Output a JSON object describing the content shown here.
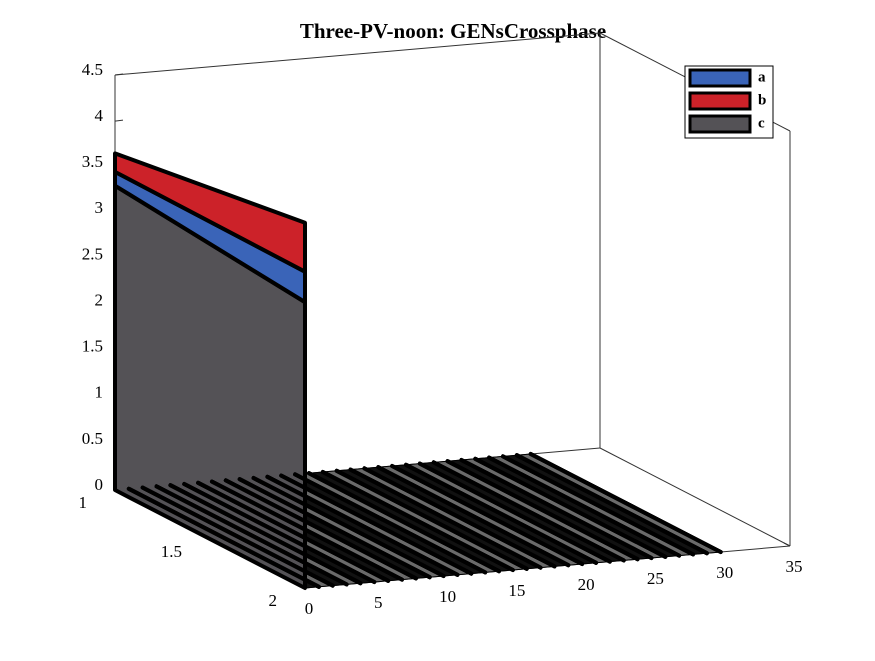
{
  "chart_data": {
    "type": "bar3-stacked",
    "title": "Three-PV-noon: GENsCrossphase",
    "x": [
      0,
      1,
      2,
      3,
      4,
      5,
      6,
      7,
      8,
      9,
      10,
      11,
      12,
      13,
      14,
      15,
      16,
      17,
      18,
      19,
      20,
      21,
      22,
      23,
      24,
      25,
      26,
      27,
      28,
      29,
      30
    ],
    "depth": [
      1,
      2
    ],
    "series": [
      {
        "name": "a",
        "color": "#3a64b8",
        "values": [
          [
            0.15,
            0,
            0,
            0,
            0,
            0,
            0,
            0,
            0,
            0,
            0,
            0,
            0,
            0,
            0,
            0,
            0,
            0,
            0,
            0,
            0,
            0,
            0,
            0,
            0,
            0,
            0,
            0,
            0,
            0,
            0
          ],
          [
            0.33,
            0,
            0,
            0,
            0,
            0,
            0,
            0,
            0,
            0,
            0,
            0,
            0,
            0,
            0,
            0,
            0,
            0,
            0,
            0,
            0,
            0,
            0,
            0,
            0,
            0,
            0,
            0,
            0,
            0,
            0
          ]
        ]
      },
      {
        "name": "b",
        "color": "#cc2229",
        "values": [
          [
            0.2,
            0,
            0,
            0,
            0,
            0,
            0,
            0,
            0,
            0,
            0,
            0,
            0,
            0,
            0,
            0,
            0,
            0,
            0,
            0,
            0,
            0,
            0,
            0,
            0,
            0,
            0,
            0,
            0,
            0,
            0
          ],
          [
            0.53,
            0,
            0,
            0,
            0,
            0,
            0,
            0,
            0,
            0,
            0,
            0,
            0,
            0,
            0,
            0,
            0,
            0,
            0,
            0,
            0,
            0,
            0,
            0,
            0,
            0,
            0,
            0,
            0,
            0,
            0
          ]
        ]
      },
      {
        "name": "c",
        "color": "#545256",
        "values": [
          [
            3.3,
            0,
            0,
            0,
            0,
            0,
            0,
            0,
            0,
            0,
            0,
            0,
            0,
            0,
            0,
            0,
            0,
            0,
            0,
            0,
            0,
            0,
            0,
            0,
            0,
            0,
            0,
            0,
            0,
            0,
            0
          ],
          [
            3.1,
            0,
            0,
            0,
            0,
            0,
            0,
            0,
            0,
            0,
            0,
            0,
            0,
            0,
            0,
            0,
            0,
            0,
            0,
            0,
            0,
            0,
            0,
            0,
            0,
            0,
            0,
            0,
            0,
            0,
            0
          ]
        ]
      }
    ],
    "stack_order": [
      2,
      0,
      1
    ],
    "xlim": [
      0,
      35
    ],
    "xticks": [
      0,
      5,
      10,
      15,
      20,
      25,
      30,
      35
    ],
    "ylim": [
      1,
      2
    ],
    "yticks": [
      1,
      1.5,
      2
    ],
    "zlim": [
      0,
      4.5
    ],
    "zticks": [
      0,
      0.5,
      1,
      1.5,
      2,
      2.5,
      3,
      3.5,
      4,
      4.5
    ],
    "legend": "top-right"
  }
}
